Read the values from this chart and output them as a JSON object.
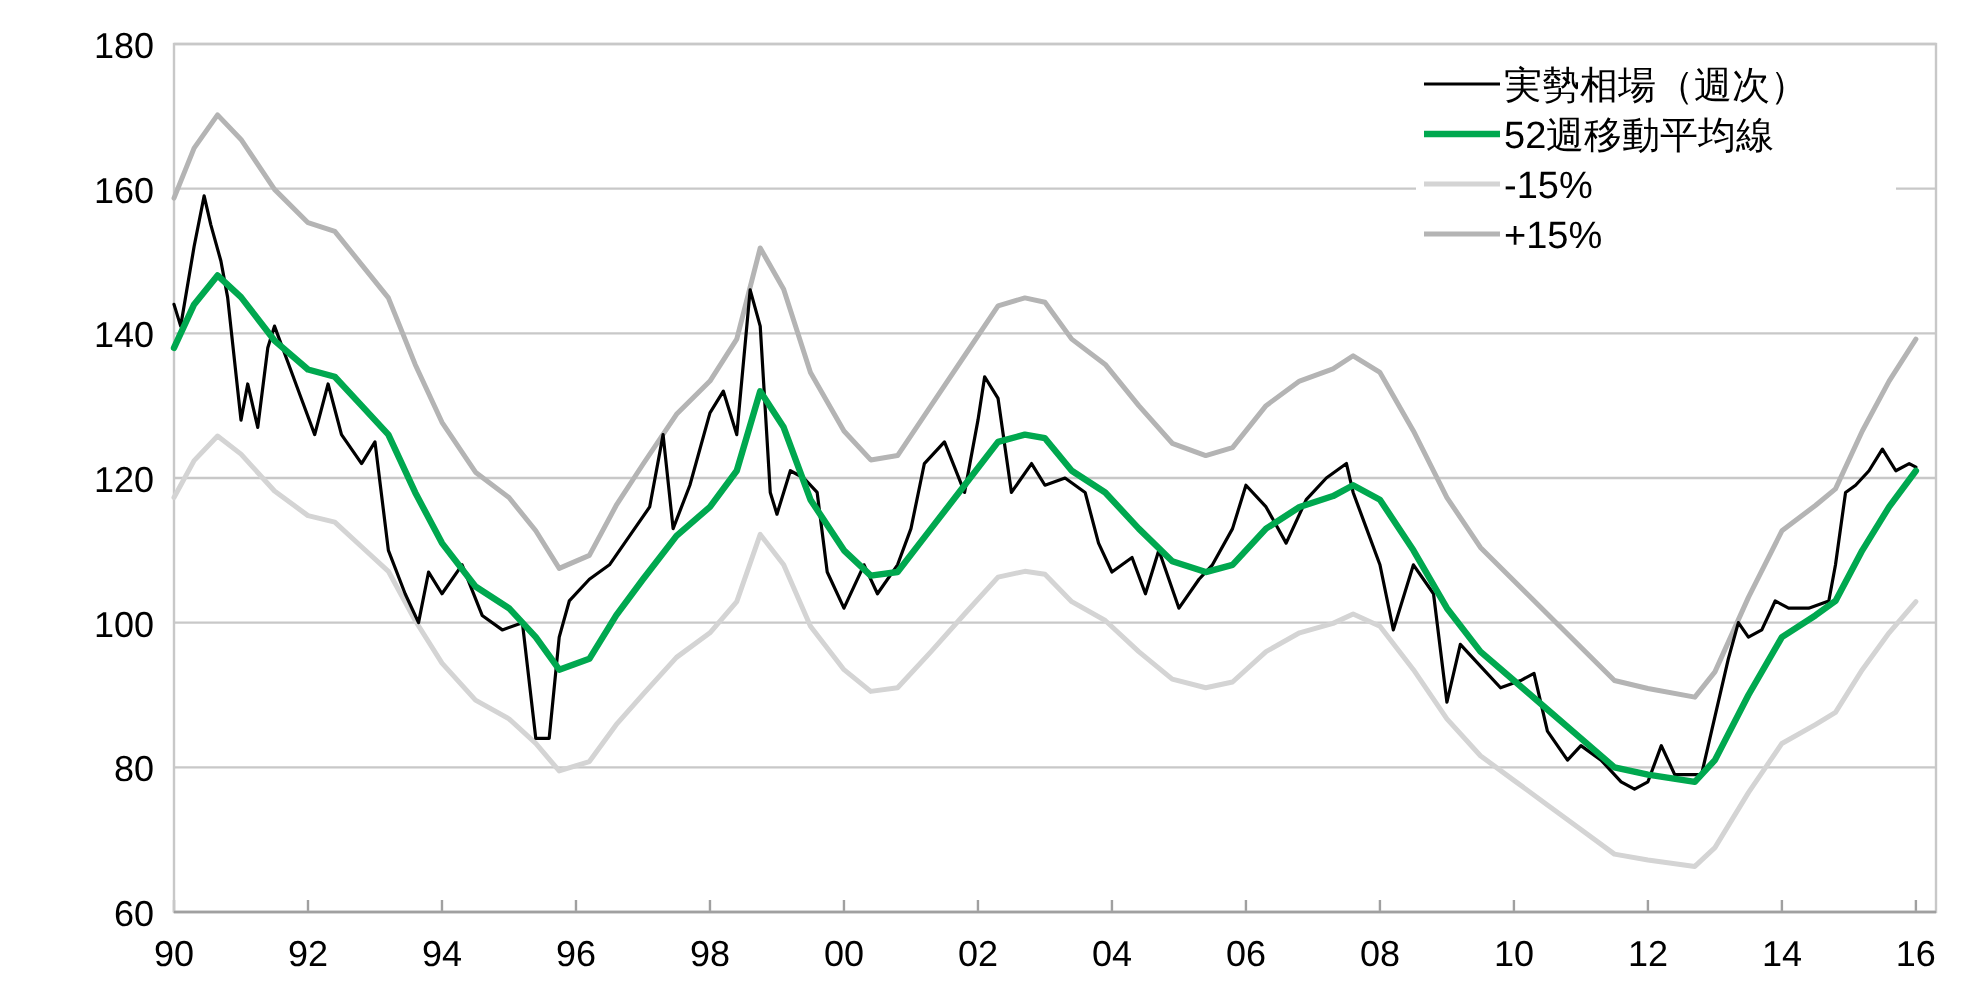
{
  "chart_data": {
    "type": "line",
    "xlim": [
      1990,
      2016.3
    ],
    "ylim": [
      60,
      180
    ],
    "xticks": [
      {
        "value": 1990,
        "label": "90"
      },
      {
        "value": 1992,
        "label": "92"
      },
      {
        "value": 1994,
        "label": "94"
      },
      {
        "value": 1996,
        "label": "96"
      },
      {
        "value": 1998,
        "label": "98"
      },
      {
        "value": 2000,
        "label": "00"
      },
      {
        "value": 2002,
        "label": "02"
      },
      {
        "value": 2004,
        "label": "04"
      },
      {
        "value": 2006,
        "label": "06"
      },
      {
        "value": 2008,
        "label": "08"
      },
      {
        "value": 2010,
        "label": "10"
      },
      {
        "value": 2012,
        "label": "12"
      },
      {
        "value": 2014,
        "label": "14"
      },
      {
        "value": 2016,
        "label": "16"
      }
    ],
    "yticks": [
      60,
      80,
      100,
      120,
      140,
      160,
      180
    ],
    "grid": "y",
    "legend": "top right",
    "series": [
      {
        "name": "-15%",
        "color": "#d4d4d4",
        "x": [
          1990.0,
          1990.3,
          1990.65,
          1991.0,
          1991.5,
          1992.0,
          1992.4,
          1992.8,
          1993.2,
          1993.6,
          1994.0,
          1994.5,
          1995.0,
          1995.4,
          1995.75,
          1996.2,
          1996.6,
          1997.0,
          1997.5,
          1998.0,
          1998.4,
          1998.75,
          1999.1,
          1999.5,
          2000.0,
          2000.4,
          2000.8,
          2001.3,
          2001.8,
          2002.3,
          2002.7,
          2003.0,
          2003.4,
          2003.9,
          2004.4,
          2004.9,
          2005.4,
          2005.8,
          2006.3,
          2006.8,
          2007.3,
          2007.6,
          2008.0,
          2008.5,
          2009.0,
          2009.5,
          2010.0,
          2010.5,
          2011.0,
          2011.5,
          2012.0,
          2012.7,
          2013.0,
          2013.5,
          2014.0,
          2014.5,
          2014.8,
          2015.2,
          2015.6,
          2016.0
        ],
        "values": [
          117.3,
          122.4,
          125.8,
          123.3,
          118.2,
          114.8,
          113.9,
          110.5,
          107.1,
          100.3,
          94.4,
          89.3,
          86.7,
          83.3,
          79.5,
          80.8,
          85.9,
          90.1,
          95.2,
          98.6,
          102.9,
          112.2,
          108,
          99.5,
          93.5,
          90.5,
          91,
          96,
          101.2,
          106.3,
          107.1,
          106.7,
          102.9,
          100.3,
          96,
          92.2,
          91,
          91.8,
          96,
          98.6,
          99.9,
          101.2,
          99.5,
          93.5,
          86.7,
          81.6,
          78.2,
          74.8,
          71.4,
          68,
          67.2,
          66.3,
          68.9,
          76.5,
          83.3,
          85.9,
          87.6,
          93.5,
          98.6,
          102.9
        ]
      },
      {
        "name": "+15%",
        "color": "#b4b4b4",
        "x": [
          1990.0,
          1990.3,
          1990.65,
          1991.0,
          1991.5,
          1992.0,
          1992.4,
          1992.8,
          1993.2,
          1993.6,
          1994.0,
          1994.5,
          1995.0,
          1995.4,
          1995.75,
          1996.2,
          1996.6,
          1997.0,
          1997.5,
          1998.0,
          1998.4,
          1998.75,
          1999.1,
          1999.5,
          2000.0,
          2000.4,
          2000.8,
          2001.3,
          2001.8,
          2002.3,
          2002.7,
          2003.0,
          2003.4,
          2003.9,
          2004.4,
          2004.9,
          2005.4,
          2005.8,
          2006.3,
          2006.8,
          2007.3,
          2007.6,
          2008.0,
          2008.5,
          2009.0,
          2009.5,
          2010.0,
          2010.5,
          2011.0,
          2011.5,
          2012.0,
          2012.7,
          2013.0,
          2013.5,
          2014.0,
          2014.5,
          2014.8,
          2015.2,
          2015.6,
          2016.0
        ],
        "values": [
          158.7,
          165.6,
          170.2,
          166.8,
          159.9,
          155.3,
          154.1,
          149.5,
          144.9,
          135.7,
          127.7,
          120.8,
          117.3,
          112.7,
          107.5,
          109.3,
          116.2,
          121.9,
          128.8,
          133.4,
          139.2,
          151.8,
          146.1,
          134.6,
          126.5,
          122.5,
          123.1,
          130,
          136.9,
          143.8,
          144.9,
          144.3,
          139.2,
          135.7,
          130,
          124.8,
          123.1,
          124.2,
          130,
          133.4,
          135.1,
          136.9,
          134.6,
          126.5,
          117.3,
          110.4,
          105.8,
          101.2,
          96.6,
          92,
          90.9,
          89.7,
          93.2,
          103.5,
          112.7,
          116.2,
          118.5,
          126.5,
          133.4,
          139.2
        ]
      },
      {
        "name": "実勢相場（週次）",
        "color": "#000000",
        "x": [
          1990.0,
          1990.1,
          1990.3,
          1990.45,
          1990.55,
          1990.7,
          1990.8,
          1991.0,
          1991.1,
          1991.25,
          1991.4,
          1991.5,
          1991.7,
          1991.9,
          1992.1,
          1992.3,
          1992.5,
          1992.8,
          1993.0,
          1993.2,
          1993.45,
          1993.65,
          1993.8,
          1994.0,
          1994.3,
          1994.6,
          1994.9,
          1995.2,
          1995.4,
          1995.6,
          1995.75,
          1995.9,
          1996.2,
          1996.5,
          1996.8,
          1997.1,
          1997.3,
          1997.45,
          1997.7,
          1998.0,
          1998.2,
          1998.4,
          1998.6,
          1998.75,
          1998.9,
          1999.0,
          1999.2,
          1999.4,
          1999.6,
          1999.75,
          2000.0,
          2000.3,
          2000.5,
          2000.8,
          2001.0,
          2001.2,
          2001.5,
          2001.8,
          2002.0,
          2002.1,
          2002.3,
          2002.5,
          2002.8,
          2003.0,
          2003.3,
          2003.6,
          2003.8,
          2004.0,
          2004.3,
          2004.5,
          2004.7,
          2005.0,
          2005.3,
          2005.5,
          2005.8,
          2006.0,
          2006.3,
          2006.6,
          2006.9,
          2007.2,
          2007.5,
          2007.6,
          2007.8,
          2008.0,
          2008.2,
          2008.5,
          2008.8,
          2009.0,
          2009.2,
          2009.5,
          2009.8,
          2010.1,
          2010.3,
          2010.5,
          2010.8,
          2011.0,
          2011.3,
          2011.6,
          2011.8,
          2012.0,
          2012.2,
          2012.4,
          2012.8,
          2013.0,
          2013.2,
          2013.35,
          2013.5,
          2013.7,
          2013.9,
          2014.1,
          2014.4,
          2014.7,
          2014.8,
          2014.95,
          2015.1,
          2015.3,
          2015.5,
          2015.7,
          2015.9,
          2016.0
        ],
        "values": [
          144,
          141,
          152,
          159,
          155,
          150,
          145,
          128,
          133,
          127,
          138,
          141,
          136,
          131,
          126,
          133,
          126,
          122,
          125,
          110,
          104,
          100,
          107,
          104,
          108,
          101,
          99,
          100,
          84,
          84,
          98,
          103,
          106,
          108,
          112,
          116,
          126,
          113,
          119,
          129,
          132,
          126,
          146,
          141,
          118,
          115,
          121,
          120,
          118,
          107,
          102,
          108,
          104,
          108,
          113,
          122,
          125,
          118,
          128,
          134,
          131,
          118,
          122,
          119,
          120,
          118,
          111,
          107,
          109,
          104,
          110,
          102,
          106,
          108,
          113,
          119,
          116,
          111,
          117,
          120,
          122,
          118,
          113,
          108,
          99,
          108,
          104,
          89,
          97,
          94,
          91,
          92,
          93,
          85,
          81,
          83,
          81,
          78,
          77,
          78,
          83,
          79,
          79,
          87,
          95,
          100,
          98,
          99,
          103,
          102,
          102,
          103,
          108,
          118,
          119,
          121,
          124,
          121,
          122,
          121.5
        ]
      },
      {
        "name": "52週移動平均線",
        "color": "#00a84f",
        "x": [
          1990.0,
          1990.3,
          1990.65,
          1991.0,
          1991.5,
          1992.0,
          1992.4,
          1992.8,
          1993.2,
          1993.6,
          1994.0,
          1994.5,
          1995.0,
          1995.4,
          1995.75,
          1996.2,
          1996.6,
          1997.0,
          1997.5,
          1998.0,
          1998.4,
          1998.75,
          1999.1,
          1999.5,
          2000.0,
          2000.4,
          2000.8,
          2001.3,
          2001.8,
          2002.3,
          2002.7,
          2003.0,
          2003.4,
          2003.9,
          2004.4,
          2004.9,
          2005.4,
          2005.8,
          2006.3,
          2006.8,
          2007.3,
          2007.6,
          2008.0,
          2008.5,
          2009.0,
          2009.5,
          2010.0,
          2010.5,
          2011.0,
          2011.5,
          2012.0,
          2012.7,
          2013.0,
          2013.5,
          2014.0,
          2014.5,
          2014.8,
          2015.2,
          2015.6,
          2016.0
        ],
        "values": [
          138,
          144,
          148,
          145,
          139,
          135,
          134,
          130,
          126,
          118,
          111,
          105,
          102,
          98,
          93.5,
          95,
          101,
          106,
          112,
          116,
          121,
          132,
          127,
          117,
          110,
          106.5,
          107,
          113,
          119,
          125,
          126,
          125.5,
          121,
          118,
          113,
          108.5,
          107,
          108,
          113,
          116,
          117.5,
          119,
          117,
          110,
          102,
          96,
          92,
          88,
          84,
          80,
          79,
          78,
          81,
          90,
          98,
          101,
          103,
          110,
          116,
          121
        ]
      }
    ]
  }
}
